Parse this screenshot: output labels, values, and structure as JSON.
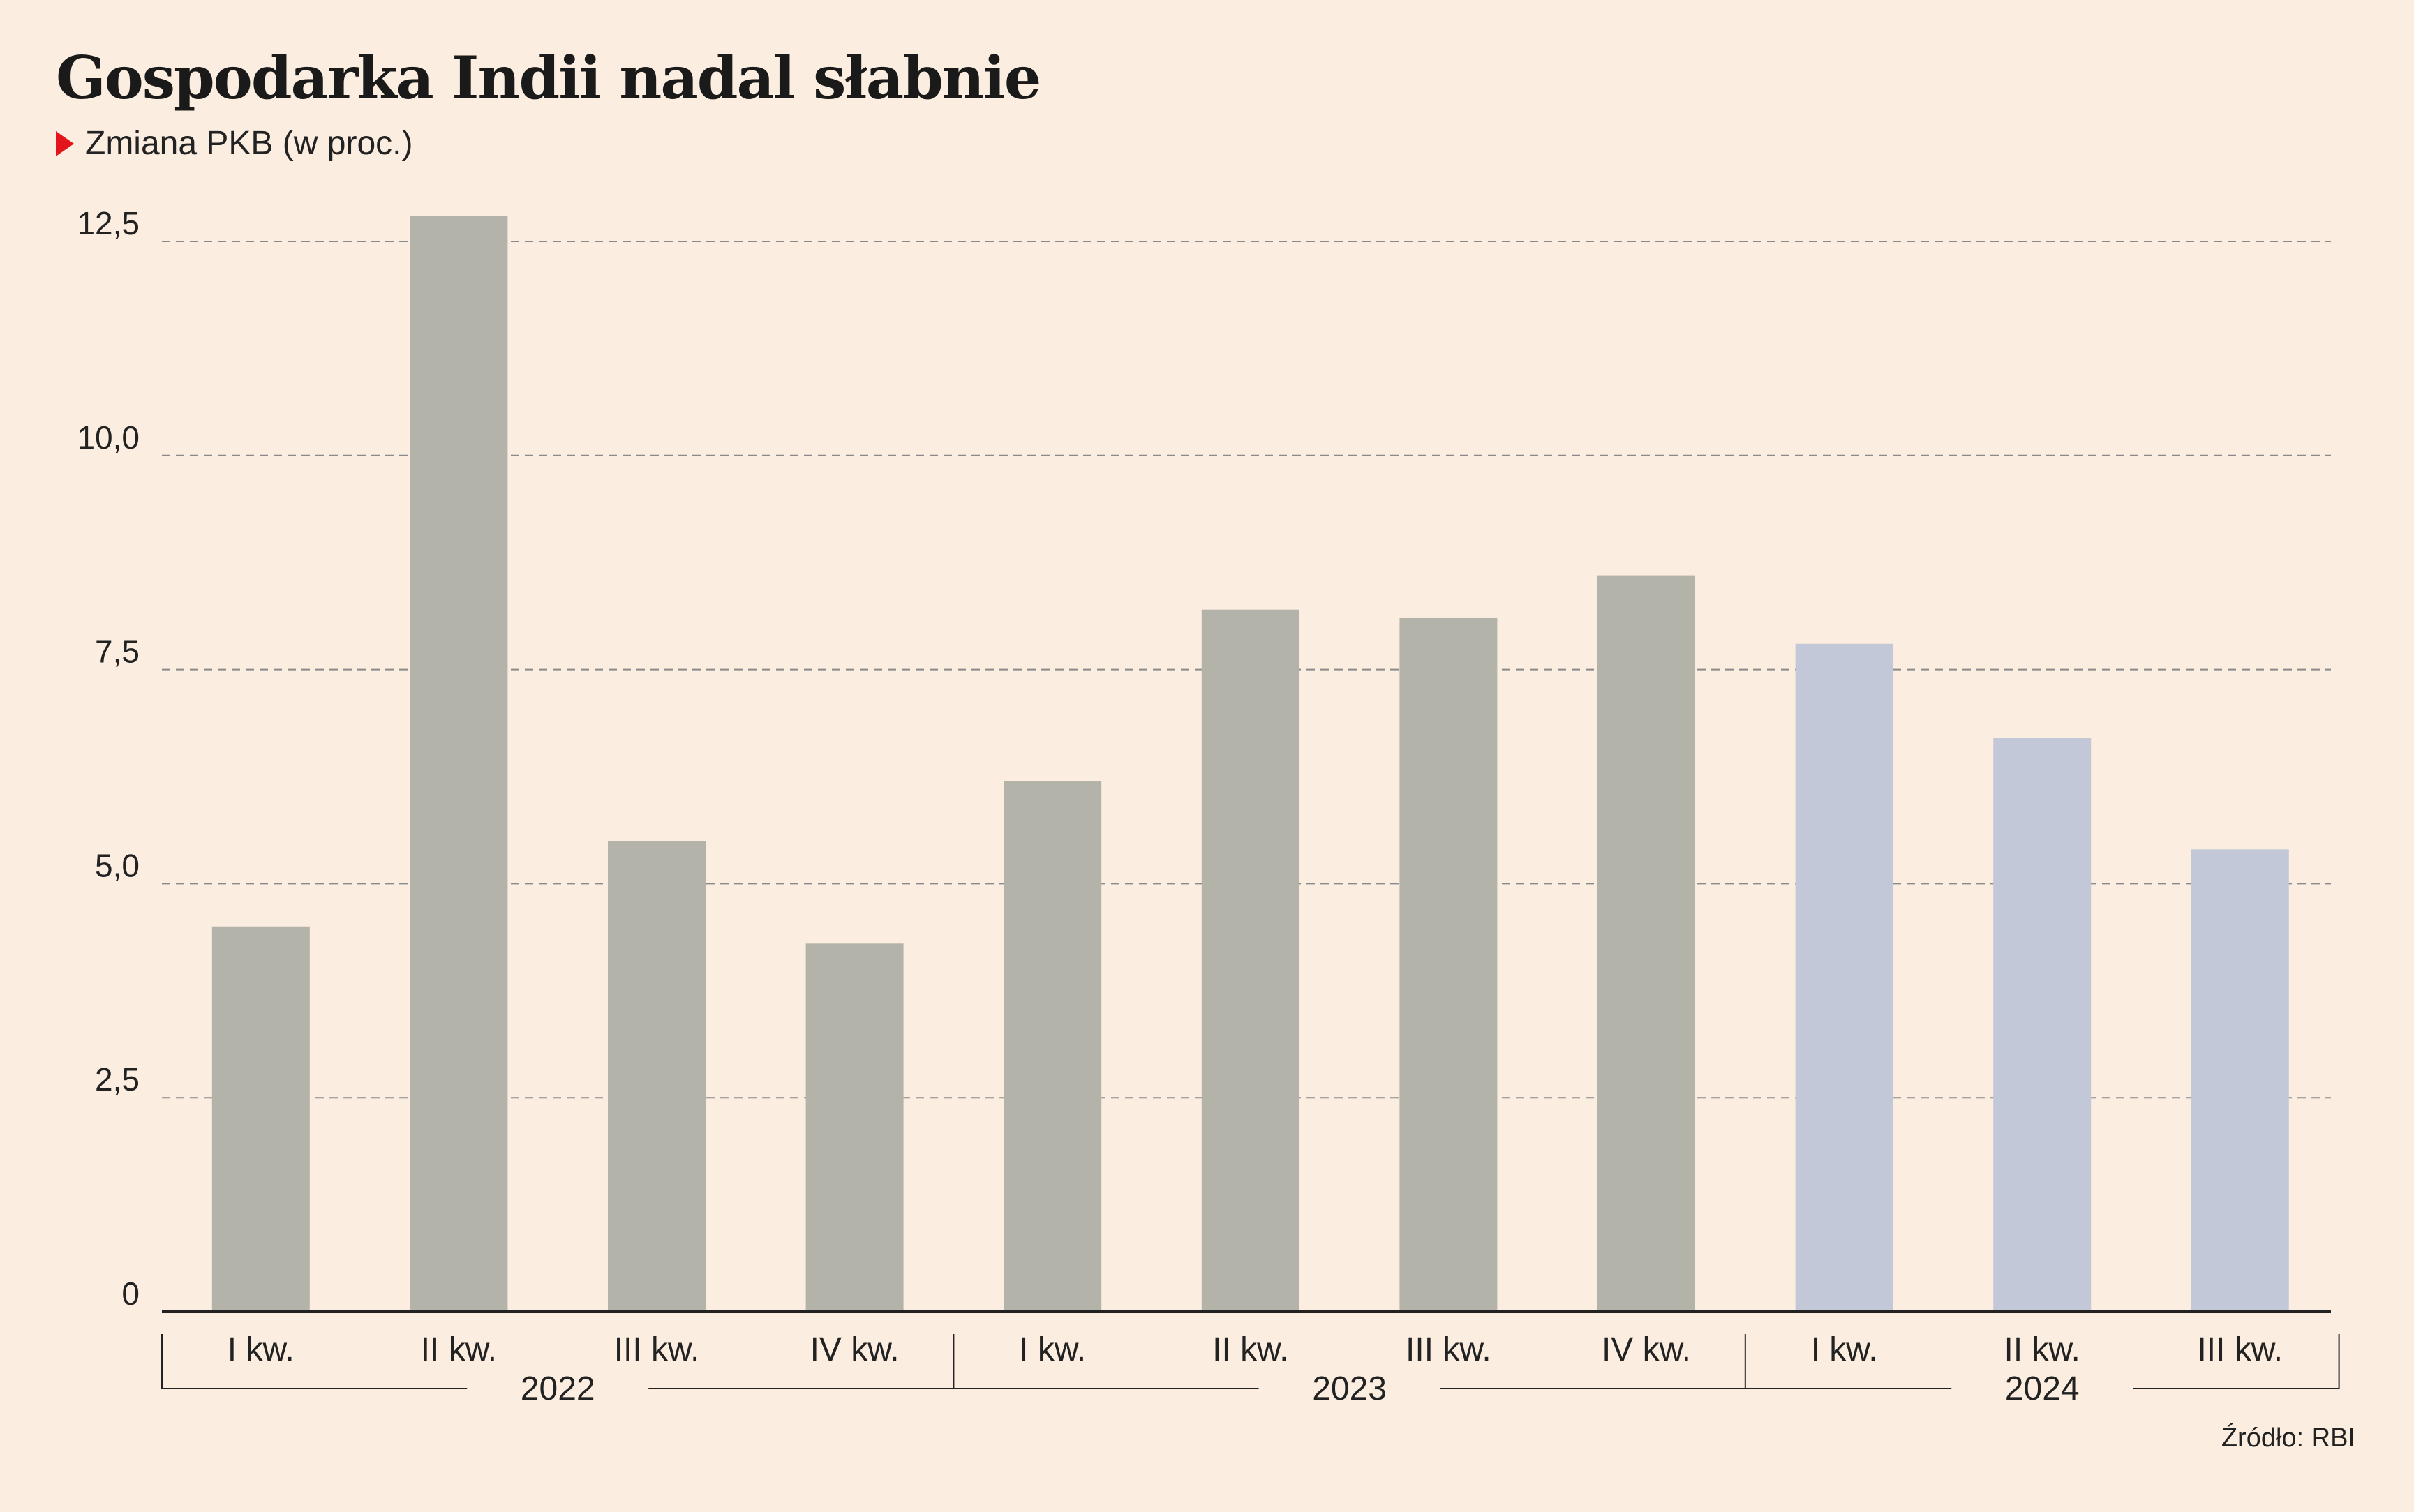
{
  "chart_data": {
    "type": "bar",
    "title": "Gospodarka Indii nadal słabnie",
    "subtitle": "Zmiana PKB (w proc.)",
    "categories": [
      "I kw.",
      "II kw.",
      "III kw.",
      "IV kw.",
      "I kw.",
      "II kw.",
      "III kw.",
      "IV kw.",
      "I kw.",
      "II kw.",
      "III kw."
    ],
    "values": [
      4.5,
      12.8,
      5.5,
      4.3,
      6.2,
      8.2,
      8.1,
      8.6,
      7.8,
      6.7,
      5.4
    ],
    "years": [
      {
        "label": "2022",
        "quarters": 4
      },
      {
        "label": "2023",
        "quarters": 4
      },
      {
        "label": "2024",
        "quarters": 3
      }
    ],
    "ylim": [
      0,
      13.3
    ],
    "yticks": [
      0,
      2.5,
      5.0,
      7.5,
      10.0,
      12.5
    ],
    "ytick_labels": [
      "0",
      "2,5",
      "5,0",
      "7,5",
      "10,0",
      "12,5"
    ],
    "grid": "horizontal dashed",
    "colors": {
      "bar_2022_2023": "#b3b3aa",
      "bar_2024": "#c3c8d8",
      "grid": "#8a8a8a",
      "axis": "#222222",
      "marker": "#e3141c",
      "background": "#fbede0"
    }
  },
  "source": "Źródło: RBI"
}
